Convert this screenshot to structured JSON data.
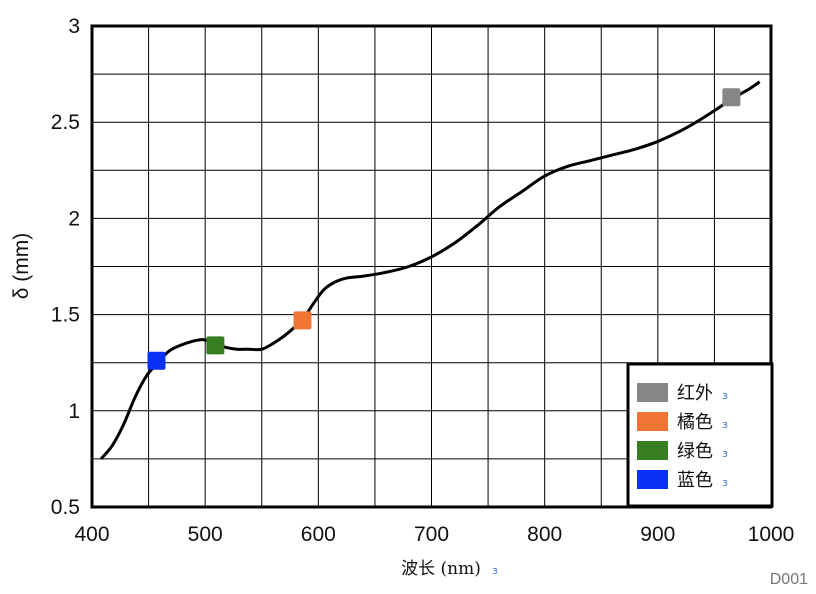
{
  "chart_data": {
    "type": "line",
    "xlabel": "波长 (nm)",
    "ylabel": "δ (mm)",
    "xlim": [
      400,
      1000
    ],
    "ylim": [
      0.5,
      3
    ],
    "xticks": [
      "400",
      "500",
      "600",
      "700",
      "800",
      "900",
      "1000"
    ],
    "yticks": [
      "0.5",
      "1",
      "1.5",
      "2",
      "2.5",
      "3"
    ],
    "grid": true,
    "legend_position": "bottom-right",
    "series": [
      {
        "x": [
          408,
          418,
          428,
          438,
          448,
          458,
          468,
          478,
          488,
          498,
          508,
          518,
          528,
          538,
          550,
          560,
          570,
          580,
          588,
          596,
          605,
          615,
          625,
          640,
          660,
          680,
          700,
          720,
          740,
          760,
          780,
          800,
          820,
          840,
          860,
          880,
          900,
          925,
          950,
          965,
          980,
          990
        ],
        "y": [
          0.75,
          0.82,
          0.93,
          1.07,
          1.18,
          1.25,
          1.31,
          1.34,
          1.36,
          1.37,
          1.35,
          1.33,
          1.32,
          1.32,
          1.32,
          1.35,
          1.39,
          1.44,
          1.49,
          1.56,
          1.63,
          1.67,
          1.69,
          1.7,
          1.72,
          1.75,
          1.8,
          1.87,
          1.96,
          2.06,
          2.14,
          2.22,
          2.27,
          2.3,
          2.33,
          2.36,
          2.4,
          2.47,
          2.56,
          2.62,
          2.67,
          2.71
        ],
        "color": "#000000"
      }
    ],
    "markers": [
      {
        "name": "蓝色",
        "x": 457,
        "y": 1.26,
        "color": "#0a2ff5"
      },
      {
        "name": "绿色",
        "x": 509,
        "y": 1.34,
        "color": "#377e22"
      },
      {
        "name": "橘色",
        "x": 586,
        "y": 1.47,
        "color": "#f07434"
      },
      {
        "name": "红外",
        "x": 965,
        "y": 2.63,
        "color": "#868686"
      }
    ],
    "legend": [
      {
        "label": "红外",
        "color": "#868686"
      },
      {
        "label": "橘色",
        "color": "#f07434"
      },
      {
        "label": "绿色",
        "color": "#377e22"
      },
      {
        "label": "蓝色",
        "color": "#0a2ff5"
      }
    ]
  },
  "figure_id": "D001"
}
